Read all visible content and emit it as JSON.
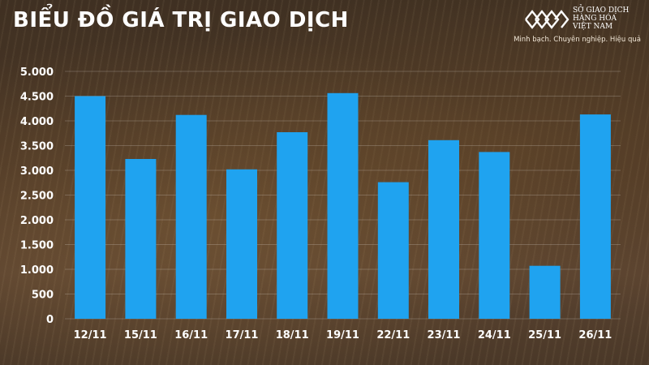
{
  "header": {
    "title": "BIỂU ĐỒ GIÁ TRỊ GIAO DỊCH"
  },
  "brand": {
    "name_lines": [
      "SỞ GIAO DỊCH",
      "HÀNG HÓA",
      "VIỆT NAM"
    ],
    "slogan": "Minh bạch. Chuyên nghiệp. Hiệu quả",
    "logo_icon": "mxv-logo-icon"
  },
  "colors": {
    "bar": "#1fa3f0",
    "text": "#ffffff",
    "gridline": "rgba(255,255,255,0.25)"
  },
  "chart_data": {
    "type": "bar",
    "title": "BIỂU ĐỒ GIÁ TRỊ GIAO DỊCH",
    "xlabel": "",
    "ylabel": "",
    "categories": [
      "12/11",
      "15/11",
      "16/11",
      "17/11",
      "18/11",
      "19/11",
      "22/11",
      "23/11",
      "24/11",
      "25/11",
      "26/11"
    ],
    "values": [
      4500,
      3230,
      4120,
      3020,
      3770,
      4560,
      2760,
      3610,
      3370,
      1070,
      4130
    ],
    "ylim": [
      0,
      5000
    ],
    "yticks": [
      0,
      500,
      1000,
      1500,
      2000,
      2500,
      3000,
      3500,
      4000,
      4500,
      5000
    ],
    "ytick_labels": [
      "0",
      "500",
      "1.000",
      "1.500",
      "2.000",
      "2.500",
      "3.000",
      "3.500",
      "4.000",
      "4.500",
      "5.000"
    ],
    "grid": true,
    "legend": "none"
  }
}
